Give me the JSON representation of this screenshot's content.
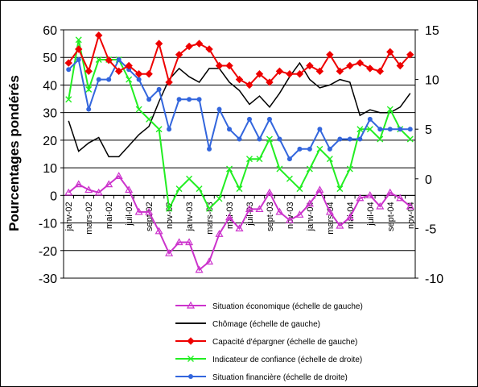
{
  "chart_data": {
    "type": "line",
    "title": "",
    "ylabel": "Pourcentages pondérés",
    "ylim": [
      -30,
      60
    ],
    "yticks": [
      -30,
      -20,
      -10,
      0,
      10,
      20,
      30,
      40,
      50,
      60
    ],
    "y2lim": [
      -10,
      15
    ],
    "y2ticks": [
      -10,
      -5,
      0,
      5,
      10,
      15
    ],
    "x_labels": [
      "janv-02",
      "mars-02",
      "mai-02",
      "juil-02",
      "sept-02",
      "nov-02",
      "janv-03",
      "mars-03",
      "mai-03",
      "juil-03",
      "sept-03",
      "nov-03",
      "janv-04",
      "mars-04",
      "mai-04",
      "juil-04",
      "sept-04",
      "nov-04"
    ],
    "grid": true,
    "legend_position": "bottom",
    "series": [
      {
        "name": "Situation économique (échelle de gauche)",
        "axis": "left",
        "color": "#cc33cc",
        "marker": "triangle",
        "values": [
          1,
          4,
          2,
          1,
          4,
          7,
          2,
          -6,
          -6,
          -13,
          -21,
          -17,
          -17,
          -27,
          -24,
          -14,
          -8,
          -12,
          -5,
          -5,
          1,
          -6,
          -9,
          -7,
          -3,
          2,
          -6,
          -11,
          -8,
          -1,
          0,
          -4,
          1,
          -1,
          -4
        ]
      },
      {
        "name": "Chômage (échelle de gauche)",
        "axis": "left",
        "color": "#000000",
        "marker": "none",
        "values": [
          27,
          16,
          19,
          21,
          14,
          14,
          18,
          22,
          25,
          34,
          42,
          46,
          43,
          41,
          46,
          46,
          41,
          38,
          33,
          36,
          32,
          37,
          43,
          48,
          42,
          39,
          40,
          42,
          41,
          29,
          31,
          30,
          30,
          32,
          37
        ]
      },
      {
        "name": "Capacité d'épargner (échelle de gauche)",
        "axis": "left",
        "color": "#ee0000",
        "marker": "diamond",
        "values": [
          48,
          53,
          45,
          58,
          49,
          45,
          47,
          44,
          44,
          55,
          41,
          51,
          54,
          55,
          53,
          47,
          47,
          42,
          40,
          44,
          41,
          45,
          44,
          44,
          47,
          45,
          51,
          45,
          47,
          48,
          46,
          45,
          52,
          47,
          51
        ]
      },
      {
        "name": "Indicateur de confiance (échelle de droite)",
        "axis": "right",
        "color": "#22ee22",
        "marker": "x",
        "values": [
          8,
          14,
          9,
          12,
          12,
          12,
          10,
          7,
          6,
          5,
          -3,
          -1,
          0,
          -1,
          -3,
          -2,
          1,
          -1,
          2,
          2,
          4,
          1,
          0,
          -1,
          1,
          3,
          2,
          -1,
          1,
          5,
          5,
          4,
          7,
          5,
          4
        ]
      },
      {
        "name": "Situation financière (échelle de droite)",
        "axis": "right",
        "color": "#3366dd",
        "marker": "dot",
        "values": [
          11,
          12,
          7,
          10,
          10,
          12,
          11,
          10,
          8,
          9,
          5,
          8,
          8,
          8,
          3,
          7,
          5,
          4,
          6,
          4,
          6,
          4,
          2,
          3,
          3,
          5,
          3,
          4,
          4,
          4,
          6,
          5,
          5,
          5,
          5
        ]
      }
    ]
  }
}
